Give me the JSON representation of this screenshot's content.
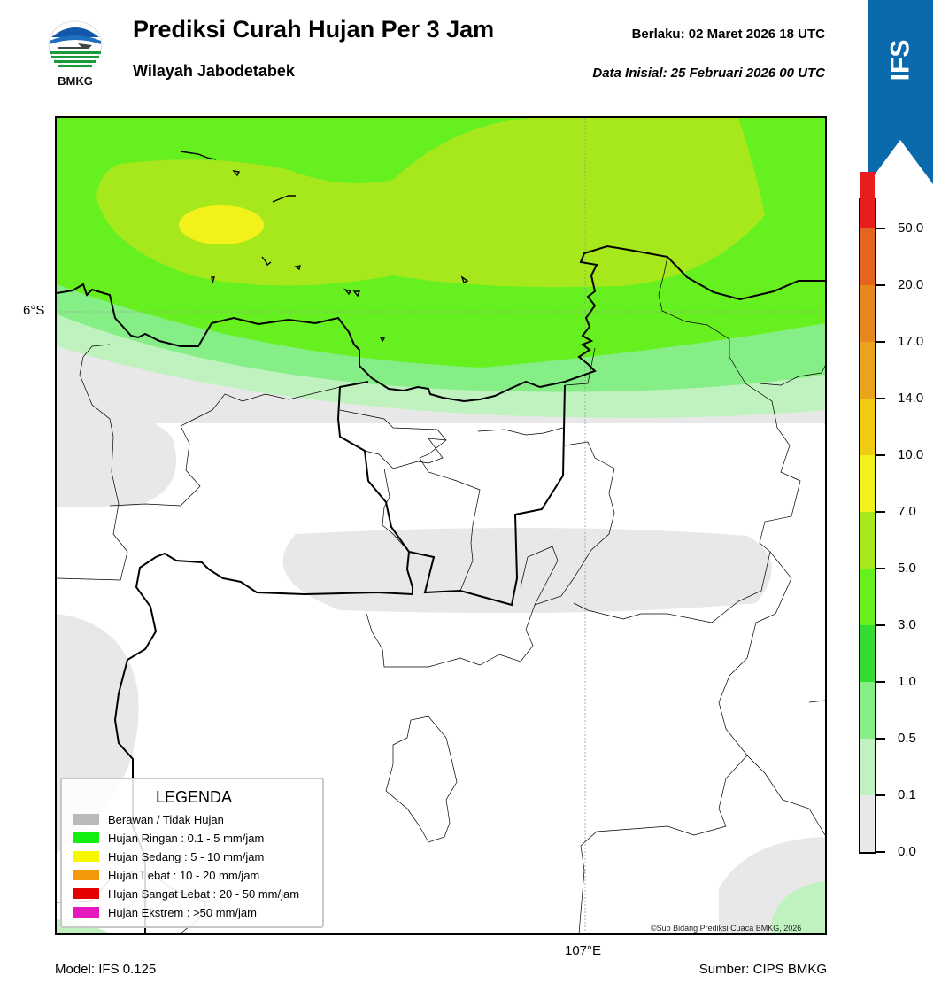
{
  "header": {
    "title": "Prediksi Curah Hujan Per 3 Jam",
    "subtitle": "Wilayah Jabodetabek",
    "valid_label": "Berlaku:  02 Maret 2026 18 UTC",
    "initial_label": "Data Inisial:  25 Februari 2026 00 UTC",
    "logo_text": "BMKG"
  },
  "ribbon": {
    "text": "IFS",
    "color": "#0a6aab"
  },
  "map": {
    "lat_label": "6°S",
    "lon_label": "107°E",
    "credit": "©Sub Bidang Prediksi Cuaca BMKG, 2026"
  },
  "footer": {
    "model": "Model: IFS 0.125",
    "source": "Sumber: CIPS BMKG"
  },
  "legend": {
    "title": "LEGENDA",
    "items": [
      {
        "label": "Berawan / Tidak Hujan",
        "color": "#b9b9b9"
      },
      {
        "label": "Hujan Ringan : 0.1 - 5 mm/jam",
        "color": "#11f011"
      },
      {
        "label": "Hujan Sedang : 5 - 10 mm/jam",
        "color": "#f7f700"
      },
      {
        "label": "Hujan Lebat : 10 - 20 mm/jam",
        "color": "#f49a0a"
      },
      {
        "label": "Hujan Sangat Lebat : 20 - 50 mm/jam",
        "color": "#e60000"
      },
      {
        "label": "Hujan Ekstrem : >50 mm/jam",
        "color": "#e619c0"
      }
    ]
  },
  "colorbar": {
    "labels": [
      "0.0",
      "0.1",
      "0.5",
      "1.0",
      "3.0",
      "5.0",
      "7.0",
      "10.0",
      "14.0",
      "17.0",
      "20.0",
      "50.0"
    ],
    "colors": [
      "#e8e8e8",
      "#c0f2c0",
      "#86ee86",
      "#32dc32",
      "#66f01f",
      "#a6e81c",
      "#f2f21a",
      "#f0cc14",
      "#eaa41c",
      "#ea861e",
      "#e6641e",
      "#e81e1e",
      "#e41eb8"
    ]
  }
}
